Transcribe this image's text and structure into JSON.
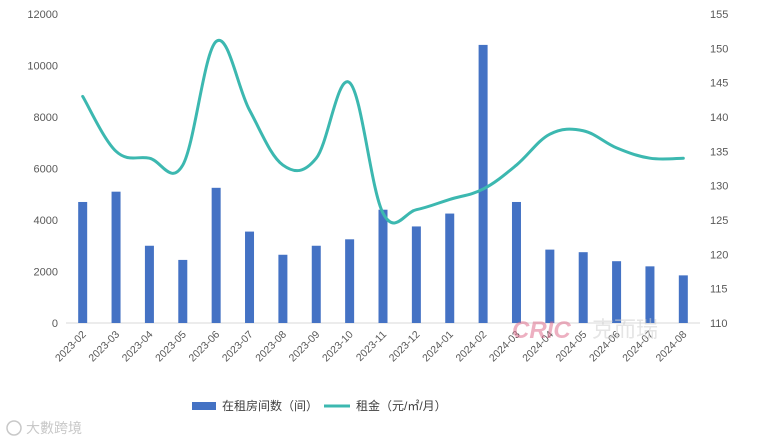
{
  "chart_data": {
    "type": "bar+line",
    "categories": [
      "2023-02",
      "2023-03",
      "2023-04",
      "2023-05",
      "2023-06",
      "2023-07",
      "2023-08",
      "2023-09",
      "2023-10",
      "2023-11",
      "2023-12",
      "2024-01",
      "2024-02",
      "2024-03",
      "2024-04",
      "2024-05",
      "2024-06",
      "2024-07",
      "2024-08"
    ],
    "series": [
      {
        "name": "在租房间数（间）",
        "type": "bar",
        "axis": "left",
        "color": "#4472C4",
        "values": [
          4700,
          5100,
          3000,
          2450,
          5250,
          3550,
          2650,
          3000,
          3250,
          4400,
          3750,
          4250,
          10800,
          4700,
          2850,
          2750,
          2400,
          2200,
          1850
        ]
      },
      {
        "name": "租金（元/㎡/月）",
        "type": "line",
        "axis": "right",
        "color": "#3CB8B0",
        "values": [
          143,
          135,
          134,
          133,
          151,
          141,
          133,
          134,
          145,
          126,
          126.5,
          128,
          129.5,
          133,
          137.5,
          138,
          135.5,
          134,
          134
        ]
      }
    ],
    "y_left": {
      "min": 0,
      "max": 12000,
      "step": 2000,
      "ticks": [
        "0",
        "2000",
        "4000",
        "6000",
        "8000",
        "10000",
        "12000"
      ]
    },
    "y_right": {
      "min": 110,
      "max": 155,
      "step": 5,
      "ticks": [
        "110",
        "115",
        "120",
        "125",
        "130",
        "135",
        "140",
        "145",
        "150",
        "155"
      ]
    },
    "legend_position": "bottom",
    "grid": false
  },
  "watermark": {
    "logo_text": "CRIC",
    "logo_cn": "克而瑞",
    "corner_text": "大數跨境"
  }
}
